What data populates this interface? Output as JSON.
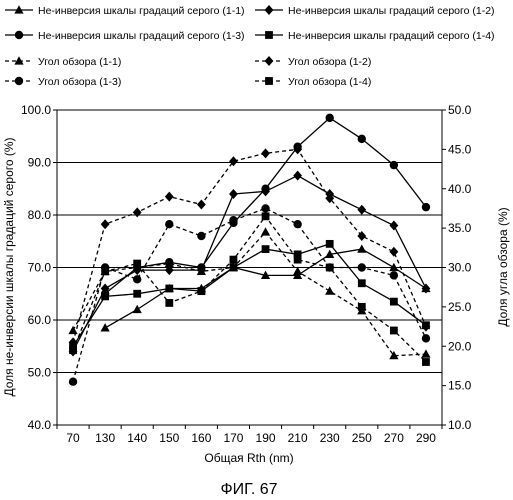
{
  "caption": "ФИГ. 67",
  "chart_data": {
    "type": "line",
    "xlabel": "Общая Rth (nm)",
    "ylabel_left": "Доля не-инверсии  шкалы градаций серого (%)",
    "ylabel_right": "Доля угла обзора (%)",
    "ylim_left": [
      40,
      100
    ],
    "ylim_right": [
      10,
      50
    ],
    "yticks_left": [
      "40.0",
      "50.0",
      "60.0",
      "70.0",
      "80.0",
      "90.0",
      "100.0"
    ],
    "yticks_right": [
      "10.0",
      "15.0",
      "20.0",
      "25.0",
      "30.0",
      "35.0",
      "40.0",
      "45.0",
      "50.0"
    ],
    "categories": [
      "70",
      "130",
      "140",
      "150",
      "160",
      "170",
      "190",
      "210",
      "230",
      "250",
      "270",
      "290"
    ],
    "grid": "horizontal",
    "legend_position": "top",
    "series": [
      {
        "name": "Не-инверсия  шкалы градаций серого (1-1)",
        "axis": "left",
        "style": "solid",
        "marker": "triangle",
        "values": [
          null,
          58.5,
          62,
          66,
          66,
          70,
          68.5,
          68.5,
          72.5,
          73.5,
          70,
          66
        ]
      },
      {
        "name": "Не-инверсия  шкалы градаций серого (1-2)",
        "axis": "left",
        "style": "solid",
        "marker": "diamond",
        "values": [
          54,
          66,
          69.5,
          69.5,
          69.5,
          84,
          84.5,
          87.5,
          84,
          81,
          78,
          66
        ]
      },
      {
        "name": "Не-инверсия  шкалы градаций серого (1-3)",
        "axis": "left",
        "style": "solid",
        "marker": "circle",
        "values": [
          null,
          65,
          70,
          71,
          70,
          78.5,
          85,
          93,
          98.5,
          94.5,
          89.5,
          81.5
        ]
      },
      {
        "name": "Не-инверсия  шкалы градаций серого (1-4)",
        "axis": "left",
        "style": "solid",
        "marker": "square",
        "values": [
          55,
          64.5,
          65,
          66,
          65.5,
          70,
          73.5,
          72.5,
          74.5,
          67,
          63.5,
          59
        ]
      },
      {
        "name": "Угол обзора (1-1)",
        "axis": "right",
        "style": "dashed",
        "marker": "triangle",
        "values": [
          22,
          29.5,
          30,
          30.5,
          29.5,
          30,
          34.5,
          29.5,
          27,
          24.5,
          18.8,
          19
        ]
      },
      {
        "name": "Угол обзора (1-2)",
        "axis": "right",
        "style": "dashed",
        "marker": "diamond",
        "values": [
          20.5,
          35.5,
          37,
          39,
          38,
          43.5,
          44.5,
          45,
          38.8,
          34,
          32,
          22.5
        ]
      },
      {
        "name": "Угол обзора (1-3)",
        "axis": "right",
        "style": "dashed",
        "marker": "circle",
        "values": [
          15.5,
          30,
          28.5,
          35.5,
          34,
          36,
          37.5,
          35.5,
          30,
          30,
          29,
          21
        ]
      },
      {
        "name": "Угол обзора (1-4)",
        "axis": "right",
        "style": "dashed",
        "marker": "square",
        "values": [
          19.5,
          29.5,
          30.5,
          25.5,
          27,
          31,
          36.5,
          31,
          30,
          25,
          22,
          18
        ]
      }
    ]
  }
}
